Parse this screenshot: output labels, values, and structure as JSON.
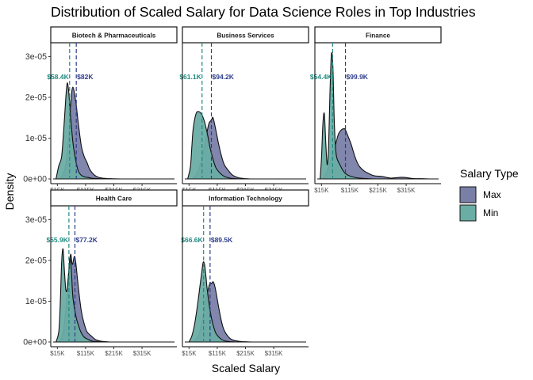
{
  "chart_data": {
    "type": "area",
    "title": "Distribution of Scaled Salary for Data Science Roles in Top Industries",
    "xlabel": "Scaled Salary",
    "ylabel": "Density",
    "xlim": [
      0,
      430000
    ],
    "ylim": [
      0,
      3.3e-05
    ],
    "x_tick_labels": [
      "$15K",
      "$115K",
      "$215K",
      "$315K"
    ],
    "x_ticks": [
      15000,
      115000,
      215000,
      315000
    ],
    "y_tick_labels": [
      "0e+00",
      "1e-05",
      "2e-05",
      "3e-05"
    ],
    "y_ticks": [
      0,
      1e-05,
      2e-05,
      3e-05
    ],
    "grid": false,
    "legend": {
      "title": "Salary Type",
      "position": "right",
      "entries": [
        {
          "name": "Max",
          "color": "#7a7fa8"
        },
        {
          "name": "Min",
          "color": "#6aada4"
        }
      ]
    },
    "colors": {
      "Max": "#7a7fa8",
      "Min": "#6aada4",
      "MaxLine": "#2d3d8c",
      "MinLine": "#1f8a80"
    },
    "annotation_y": 2.45e-05,
    "panels": [
      {
        "name": "Biotech & Pharmaceuticals",
        "min_mean": 58400,
        "max_mean": 82000,
        "min_label": "$58.4K",
        "max_label": "$82K",
        "min_density": {
          "x": [
            10000,
            20000,
            30000,
            38000,
            45000,
            50000,
            55000,
            60000,
            70000,
            80000,
            90000,
            100000,
            110000,
            120000,
            135000,
            150000,
            165000,
            185000,
            210000
          ],
          "y": [
            0,
            3.2e-06,
            5.5e-06,
            1.25e-05,
            2e-05,
            2.35e-05,
            2.15e-05,
            1.7e-05,
            9e-06,
            4.5e-06,
            1.8e-06,
            9e-07,
            5e-07,
            4e-07,
            2e-07,
            1.2e-07,
            6e-08,
            3e-08,
            0
          ]
        },
        "max_density": {
          "x": [
            15000,
            30000,
            45000,
            55000,
            63000,
            70000,
            80000,
            90000,
            100000,
            110000,
            120000,
            130000,
            145000,
            160000,
            175000,
            190000,
            210000,
            240000
          ],
          "y": [
            0,
            5e-07,
            3.5e-06,
            1.05e-05,
            1.9e-05,
            2.25e-05,
            1.9e-05,
            1.32e-05,
            8e-06,
            5.5e-06,
            4e-06,
            2.3e-06,
            1e-06,
            4e-07,
            2e-07,
            1e-07,
            4e-08,
            0
          ]
        }
      },
      {
        "name": "Business Services",
        "min_mean": 61100,
        "max_mean": 94200,
        "min_label": "$61.1K",
        "max_label": "$94.2K",
        "min_density": {
          "x": [
            10000,
            20000,
            25000,
            30000,
            40000,
            50000,
            60000,
            70000,
            80000,
            90000,
            100000,
            110000,
            125000,
            140000,
            160000,
            180000,
            200000
          ],
          "y": [
            0,
            3e-06,
            8e-06,
            1.25e-05,
            1.6e-05,
            1.65e-05,
            1.58e-05,
            1.4e-05,
            1.1e-05,
            7.5e-06,
            4.8e-06,
            2.8e-06,
            1.4e-06,
            6e-07,
            2e-07,
            6e-08,
            0
          ]
        },
        "max_density": {
          "x": [
            25000,
            40000,
            55000,
            65000,
            75000,
            85000,
            95000,
            100000,
            110000,
            120000,
            130000,
            140000,
            155000,
            170000,
            190000,
            210000,
            230000
          ],
          "y": [
            0,
            1e-06,
            3.5e-06,
            6.5e-06,
            1e-05,
            1.35e-05,
            1.45e-05,
            1.5e-05,
            1.2e-05,
            8.5e-06,
            5.6e-06,
            3.5e-06,
            2e-06,
            9e-07,
            3e-07,
            1e-07,
            0
          ]
        }
      },
      {
        "name": "Finance",
        "min_mean": 54400,
        "max_mean": 99900,
        "min_label": "$54.4K",
        "max_label": "$99.9K",
        "min_density": {
          "x": [
            10000,
            15000,
            20000,
            25000,
            30000,
            35000,
            40000,
            45000,
            50000,
            55000,
            60000,
            65000,
            70000,
            80000,
            90000,
            100000,
            120000,
            150000,
            200000
          ],
          "y": [
            0,
            5e-06,
            1.35e-05,
            1.6e-05,
            9e-06,
            3.5e-06,
            7.5e-06,
            2.1e-05,
            3.05e-05,
            2.8e-05,
            1.5e-05,
            7.5e-06,
            5e-06,
            3.5e-06,
            2.2e-06,
            1.3e-06,
            6e-07,
            2e-07,
            0
          ]
        },
        "max_density": {
          "x": [
            20000,
            35000,
            50000,
            65000,
            75000,
            85000,
            95000,
            100000,
            110000,
            120000,
            130000,
            140000,
            150000,
            165000,
            180000,
            200000,
            230000,
            260000,
            300000,
            340000,
            370000,
            400000
          ],
          "y": [
            0,
            2e-06,
            5e-06,
            8.5e-06,
            1.1e-05,
            1.2e-05,
            1.23e-05,
            1.2e-05,
            1.03e-05,
            8.5e-06,
            6.2e-06,
            4.3e-06,
            3e-06,
            2e-06,
            1.4e-06,
            8e-07,
            6e-07,
            2e-07,
            4e-07,
            1e-07,
            5e-08,
            0
          ]
        }
      },
      {
        "name": "Health Care",
        "min_mean": 55900,
        "max_mean": 77200,
        "min_label": "$55.9K",
        "max_label": "$77.2K",
        "min_density": {
          "x": [
            10000,
            20000,
            25000,
            30000,
            35000,
            40000,
            45000,
            50000,
            55000,
            60000,
            65000,
            70000,
            80000,
            90000,
            100000,
            110000,
            125000,
            140000,
            170000,
            200000
          ],
          "y": [
            0,
            2.5e-06,
            9e-06,
            1.95e-05,
            2.28e-05,
            1.75e-05,
            1.28e-05,
            1.3e-05,
            1.7e-05,
            2.05e-05,
            1.7e-05,
            1.1e-05,
            6.5e-06,
            4e-06,
            2.2e-06,
            1.2e-06,
            6e-07,
            2e-07,
            5e-08,
            0
          ]
        },
        "max_density": {
          "x": [
            20000,
            30000,
            40000,
            48000,
            55000,
            62000,
            68000,
            75000,
            80000,
            90000,
            100000,
            110000,
            120000,
            135000,
            150000,
            170000,
            200000
          ],
          "y": [
            0,
            1.2e-06,
            4.5e-06,
            1.05e-05,
            1.7e-05,
            2.15e-05,
            1.9e-05,
            2.1e-05,
            1.95e-05,
            1.3e-05,
            7.5e-06,
            4.5e-06,
            2.5e-06,
            1.5e-06,
            6e-07,
            2e-07,
            0
          ]
        }
      },
      {
        "name": "Information Technology",
        "min_mean": 66600,
        "max_mean": 89500,
        "min_label": "$66.6K",
        "max_label": "$89.5K",
        "min_density": {
          "x": [
            15000,
            25000,
            35000,
            45000,
            55000,
            60000,
            65000,
            70000,
            75000,
            80000,
            90000,
            100000,
            110000,
            125000,
            140000,
            160000,
            180000
          ],
          "y": [
            0,
            1.5e-06,
            4.5e-06,
            9e-06,
            1.45e-05,
            1.7e-05,
            1.95e-05,
            1.9e-05,
            1.6e-05,
            1.25e-05,
            7.5e-06,
            4.2e-06,
            2.2e-06,
            9e-07,
            3e-07,
            1e-07,
            0
          ]
        },
        "max_density": {
          "x": [
            30000,
            45000,
            55000,
            65000,
            75000,
            85000,
            90000,
            95000,
            100000,
            105000,
            110000,
            120000,
            130000,
            140000,
            155000,
            170000,
            190000,
            215000,
            240000
          ],
          "y": [
            0,
            1e-06,
            3e-06,
            6.5e-06,
            1.05e-05,
            1.35e-05,
            1.45e-05,
            1.43e-05,
            1.48e-05,
            1.4e-05,
            1.25e-05,
            8.5e-06,
            5e-06,
            2.8e-06,
            1.2e-06,
            5e-07,
            2e-07,
            5e-08,
            0
          ]
        }
      }
    ]
  }
}
